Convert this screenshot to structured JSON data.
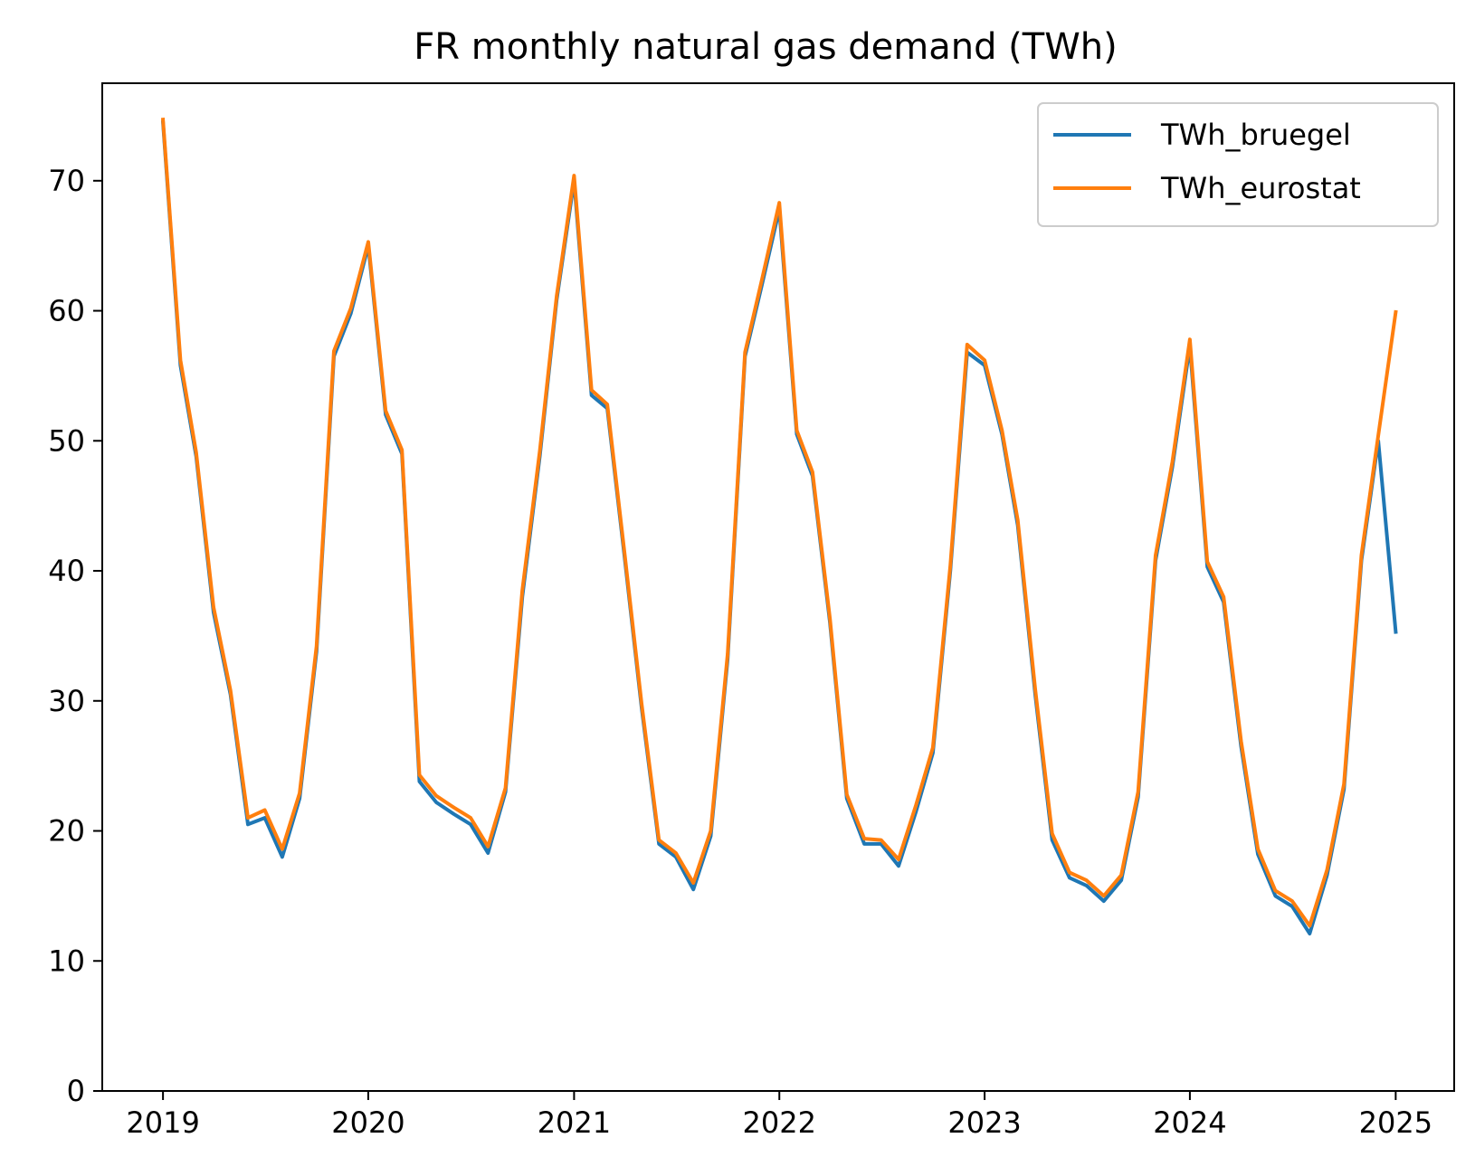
{
  "chart_data": {
    "type": "line",
    "title": "FR monthly natural gas demand (TWh)",
    "xlabel": "",
    "ylabel": "",
    "x_unit": "month",
    "x_start": "2019-01",
    "xlim": [
      "2018-09-15",
      "2025-04-15"
    ],
    "ylim": [
      0,
      77.5
    ],
    "xticks": [
      {
        "date": "2019-01",
        "label": "2019"
      },
      {
        "date": "2020-01",
        "label": "2020"
      },
      {
        "date": "2021-01",
        "label": "2021"
      },
      {
        "date": "2022-01",
        "label": "2022"
      },
      {
        "date": "2023-01",
        "label": "2023"
      },
      {
        "date": "2024-01",
        "label": "2024"
      },
      {
        "date": "2025-01",
        "label": "2025"
      }
    ],
    "yticks": [
      0,
      10,
      20,
      30,
      40,
      50,
      60,
      70
    ],
    "grid": false,
    "legend": "top-right",
    "series": [
      {
        "name": "TWh_bruegel",
        "color": "#1f77b4",
        "values": [
          74.5,
          55.8,
          48.8,
          36.8,
          30.5,
          20.5,
          21.0,
          18.0,
          22.5,
          33.8,
          56.5,
          59.8,
          65.0,
          52.0,
          49.0,
          23.8,
          22.2,
          21.3,
          20.5,
          18.3,
          23.0,
          38.0,
          48.8,
          60.8,
          70.0,
          53.5,
          52.5,
          41.0,
          29.5,
          19.0,
          18.0,
          15.5,
          19.6,
          33.2,
          56.5,
          62.0,
          67.8,
          50.5,
          47.3,
          36.0,
          22.5,
          19.0,
          19.0,
          17.3,
          21.5,
          26.0,
          40.0,
          56.8,
          55.8,
          50.5,
          43.5,
          30.5,
          19.3,
          16.4,
          15.8,
          14.6,
          16.2,
          22.6,
          40.8,
          48.0,
          57.3,
          40.3,
          37.6,
          26.5,
          18.2,
          15.0,
          14.2,
          12.1,
          16.6,
          23.2,
          40.8,
          50.0,
          35.3
        ]
      },
      {
        "name": "TWh_eurostat",
        "color": "#ff7f0e",
        "values": [
          74.7,
          56.2,
          49.1,
          37.2,
          30.8,
          21.0,
          21.6,
          18.6,
          22.9,
          34.2,
          56.9,
          60.2,
          65.3,
          52.3,
          49.3,
          24.3,
          22.7,
          21.8,
          21.0,
          18.8,
          23.3,
          38.5,
          49.2,
          61.1,
          70.4,
          53.9,
          52.8,
          41.3,
          29.8,
          19.3,
          18.3,
          16.0,
          20.0,
          33.6,
          56.8,
          62.4,
          68.3,
          50.8,
          47.6,
          36.3,
          22.8,
          19.4,
          19.3,
          17.8,
          22.0,
          26.4,
          40.4,
          57.4,
          56.2,
          50.8,
          43.9,
          30.9,
          19.8,
          16.8,
          16.2,
          15.0,
          16.6,
          23.0,
          41.2,
          48.4,
          57.8,
          40.7,
          38.0,
          26.9,
          18.6,
          15.4,
          14.6,
          12.7,
          17.0,
          23.6,
          41.2,
          50.4,
          59.9
        ]
      }
    ]
  }
}
